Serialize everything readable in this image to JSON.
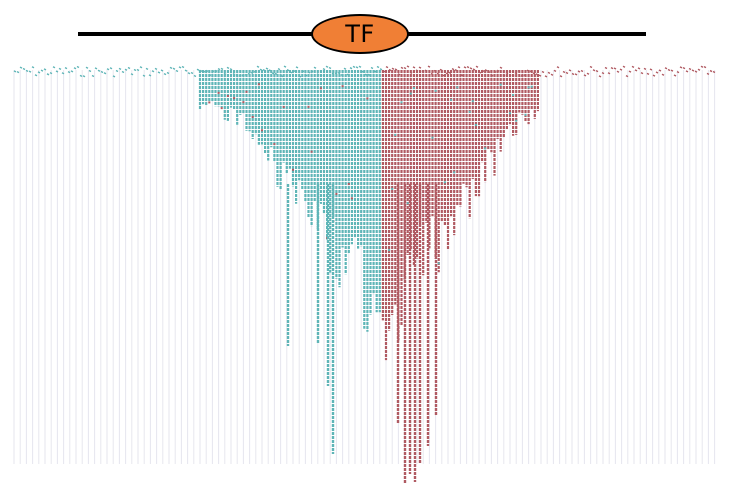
{
  "header": {
    "title": "TF",
    "badge_color": "#f07f35",
    "rule_color": "#000000"
  },
  "tree": {
    "left_color": "#5fb5b7",
    "right_color": "#b05a62",
    "guide_color": "#e6e6ee"
  }
}
